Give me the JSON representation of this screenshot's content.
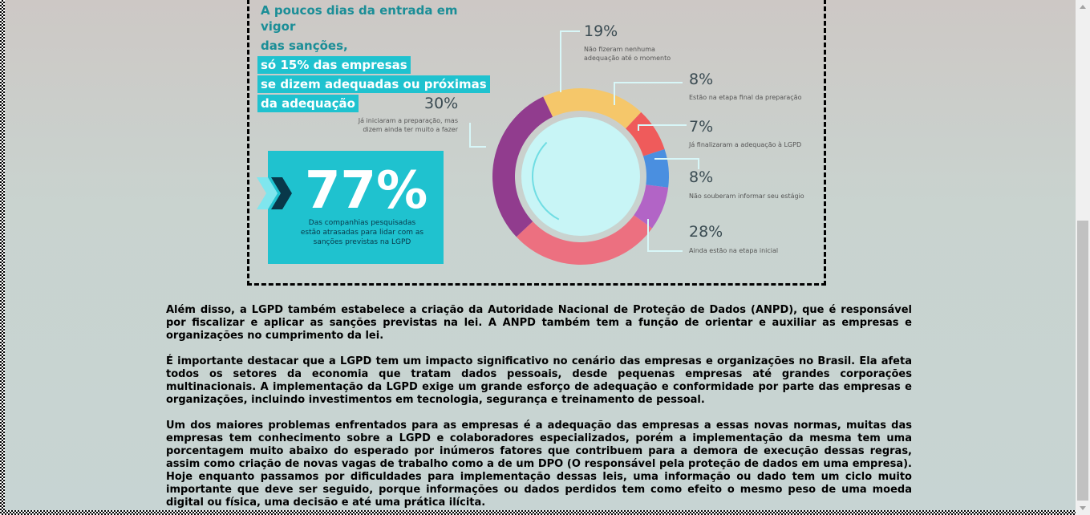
{
  "infographic": {
    "headline_line1": "A poucos dias da entrada em vigor",
    "headline_line2_plain": "das sanções,",
    "headline_line2_box": "só 15% das empresas",
    "headline_line3": "se dizem adequadas ou próximas",
    "headline_line4": "da adequação",
    "big_percent": "77%",
    "big_caption": "Das companhias pesquisadas estão atrasadas para lidar com as sanções previstas na LGPD",
    "colors": {
      "accent": "#1fc2cf",
      "dark": "#08384a"
    }
  },
  "chart_data": {
    "type": "pie",
    "style": "donut",
    "title": "",
    "series": [
      {
        "name": "Não fizeram nenhuma adequação até o momento",
        "label": "19%",
        "value": 19,
        "color": "#f5c76a"
      },
      {
        "name": "Estão na etapa final da preparação",
        "label": "8%",
        "value": 8,
        "color": "#ef5b5b"
      },
      {
        "name": "Já finalizaram a adequação à LGPD",
        "label": "7%",
        "value": 7,
        "color": "#4a8fe0"
      },
      {
        "name": "Não souberam informar seu estágio",
        "label": "8%",
        "value": 8,
        "color": "#b264c6"
      },
      {
        "name": "Ainda estão na etapa inicial",
        "label": "28%",
        "value": 28,
        "color": "#ec7080"
      },
      {
        "name": "Já iniciaram a preparação, mas dizem ainda ter muito a fazer",
        "label": "30%",
        "value": 30,
        "color": "#913c8e"
      }
    ],
    "center_color": "#c8f5f6"
  },
  "article": {
    "p1": "Além disso, a LGPD também estabelece a criação da Autoridade Nacional de Proteção de Dados (ANPD), que é responsável por fiscalizar e aplicar as sanções previstas na lei. A ANPD também tem a função de orientar e auxiliar as empresas e organizações no cumprimento da lei.",
    "p2": "É importante destacar que a LGPD tem um impacto significativo no cenário das empresas e organizações no Brasil. Ela afeta todos os setores da economia que tratam dados pessoais, desde pequenas empresas até grandes corporações multinacionais. A implementação da LGPD exige um grande esforço de adequação e conformidade por parte das empresas e organizações, incluindo investimentos em tecnologia, segurança e treinamento de pessoal.",
    "p3": "Um dos maiores problemas enfrentados para as empresas é a adequação das empresas a essas novas normas, muitas das empresas tem conhecimento sobre a LGPD e colaboradores especializados, porém a implementação da mesma tem uma porcentagem muito abaixo do esperado por inúmeros fatores que contribuem para a demora de execução dessas regras, assim como criação de novas vagas de trabalho como a de um DPO (O responsável pela proteção de dados em uma empresa). Hoje enquanto passamos por dificuldades para implementação dessas leis, uma informação ou dado tem um ciclo muito importante que deve ser seguido, porque informações ou dados perdidos tem como efeito o mesmo peso de uma moeda digital ou física, uma decisão e até uma prática ilícita."
  }
}
